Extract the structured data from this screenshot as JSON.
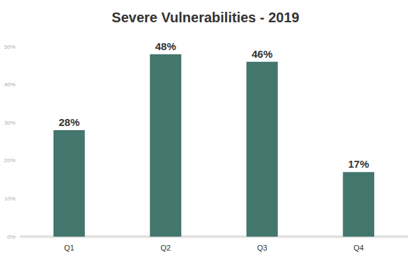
{
  "chart_data": {
    "type": "bar",
    "title": "Severe Vulnerabilities - 2019",
    "categories": [
      "Q1",
      "Q2",
      "Q3",
      "Q4"
    ],
    "values": [
      28,
      48,
      46,
      17
    ],
    "value_labels": [
      "28%",
      "48%",
      "46%",
      "17%"
    ],
    "data_labels": true,
    "color": "#43766c",
    "ylim": [
      0,
      50
    ],
    "yticks": [
      {
        "value": 0,
        "label": "0%"
      },
      {
        "value": 10,
        "label": "10%"
      },
      {
        "value": 20,
        "label": "20%"
      },
      {
        "value": 30,
        "label": "30%"
      },
      {
        "value": 40,
        "label": "40%"
      },
      {
        "value": 50,
        "label": "50%"
      }
    ],
    "grid": false
  }
}
